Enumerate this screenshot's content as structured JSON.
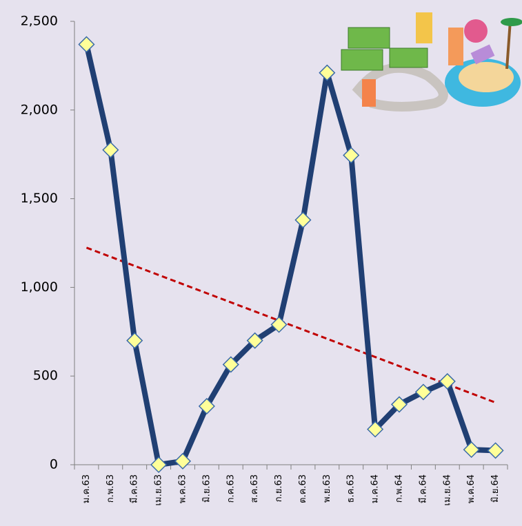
{
  "chart_data": {
    "type": "line",
    "categories": [
      "ม.ค.63",
      "ก.พ.63",
      "มี.ค.63",
      "เม.ย.63",
      "พ.ค.63",
      "มิ.ย.63",
      "ก.ค.63",
      "ส.ค.63",
      "ก.ย.63",
      "ต.ค.63",
      "พ.ย.63",
      "ธ.ค.63",
      "ม.ค.64",
      "ก.พ.64",
      "มี.ค.64",
      "เม.ย.64",
      "พ.ค.64",
      "มิ.ย.64"
    ],
    "values": [
      2370,
      1775,
      700,
      0,
      20,
      330,
      565,
      700,
      790,
      1380,
      2210,
      1745,
      200,
      340,
      410,
      470,
      85,
      80
    ],
    "color": "#203f73",
    "marker_color": "#ffff99",
    "trendline": true,
    "trendline_color": "#c00000",
    "ylim": [
      0,
      2500
    ],
    "yticks": [
      0,
      500,
      {
        "value": 1000,
        "label": "1,000"
      },
      {
        "value": 1500,
        "label": "1,500"
      },
      {
        "value": 2000,
        "label": "2,000"
      },
      {
        "value": 2500,
        "label": "2,500"
      }
    ],
    "grid": false
  }
}
